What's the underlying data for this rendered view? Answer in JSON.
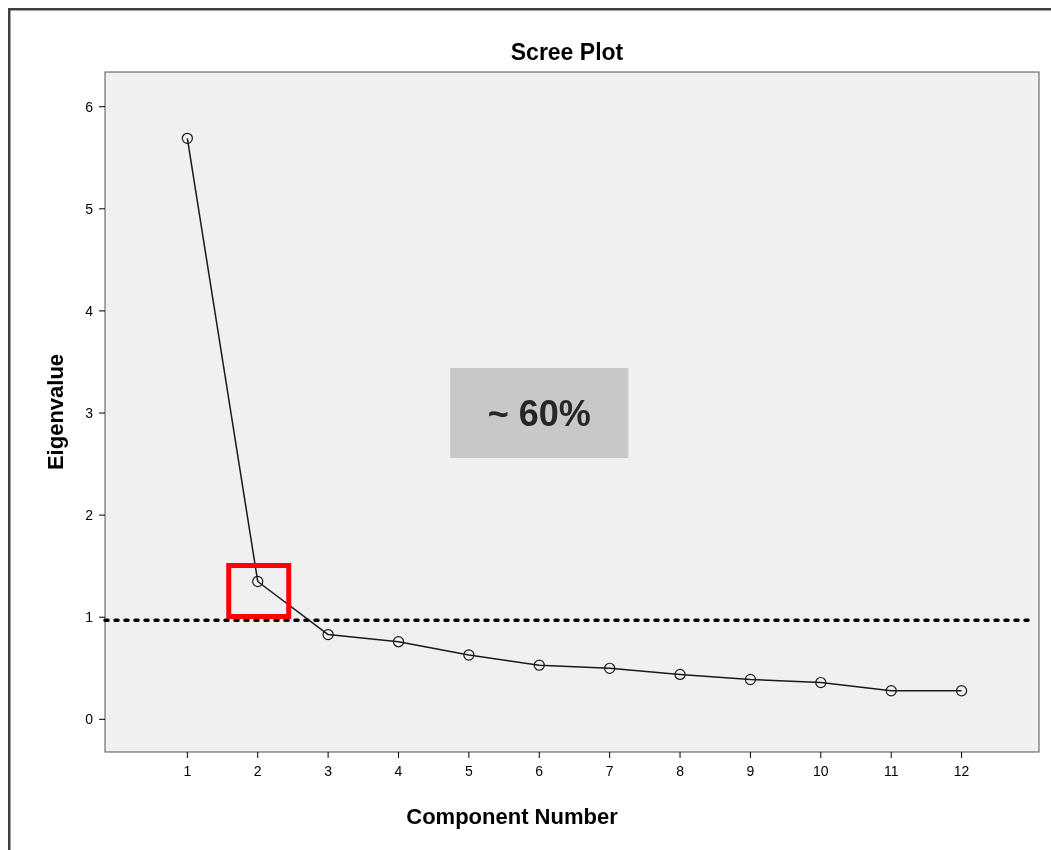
{
  "chart_data": {
    "type": "line",
    "title": "Scree Plot",
    "xlabel": "Component Number",
    "ylabel": "Eigenvalue",
    "x": [
      1,
      2,
      3,
      4,
      5,
      6,
      7,
      8,
      9,
      10,
      11,
      12
    ],
    "series": [
      {
        "color": "#1a1a1a",
        "values": [
          5.69,
          1.35,
          0.83,
          0.76,
          0.63,
          0.53,
          0.5,
          0.44,
          0.39,
          0.36,
          0.28,
          0.28
        ]
      }
    ],
    "xlim": [
      -0.17,
      13.1
    ],
    "xticks": [
      1,
      2,
      3,
      4,
      5,
      6,
      7,
      8,
      9,
      10,
      11,
      12
    ],
    "ylim": [
      -0.32,
      6.34
    ],
    "yticks": [
      0,
      1,
      2,
      3,
      4,
      5,
      6
    ],
    "ref_lines": [
      {
        "axis": "y",
        "value": 0.97,
        "color": "#000000",
        "line_style": "dotted"
      }
    ],
    "annotations": [
      "~ 60%"
    ],
    "marker": "circle",
    "line_style": "solid"
  }
}
